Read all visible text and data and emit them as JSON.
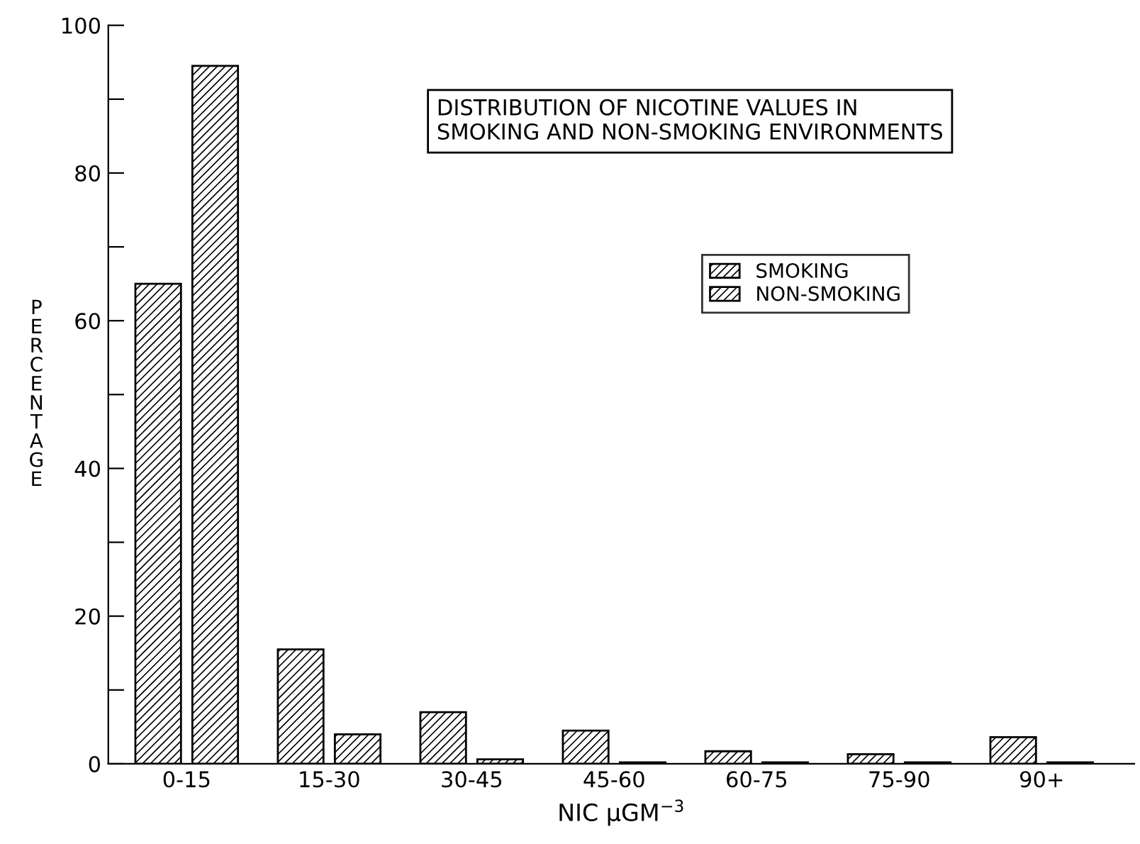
{
  "chart_data": {
    "type": "bar",
    "title": "DISTRIBUTION OF NICOTINE VALUES IN\nSMOKING AND NON-SMOKING ENVIRONMENTS",
    "xlabel": "NIC μGM$^{−3}$",
    "ylabel": "P\nE\nR\nC\nE\nN\nT\nA\nG\nE",
    "categories": [
      "0-15",
      "15-30",
      "30-45",
      "45-60",
      "60-75",
      "75-90",
      "90+"
    ],
    "series": [
      {
        "name": "SMOKING",
        "color": "#000000",
        "values": [
          65,
          15.5,
          7,
          4.5,
          1.7,
          1.3,
          3.6
        ]
      },
      {
        "name": "NON-SMOKING",
        "color": "#000000",
        "values": [
          94.5,
          4,
          0.6,
          0.2,
          0.2,
          0.2,
          0.2
        ]
      }
    ],
    "ylim": [
      0,
      100
    ],
    "yticks": [
      0,
      {
        "value": 10,
        "label": null
      },
      20,
      {
        "value": 30,
        "label": null
      },
      40,
      {
        "value": 50,
        "label": null
      },
      60,
      {
        "value": 70,
        "label": null
      },
      80,
      {
        "value": 90,
        "label": null
      },
      100
    ],
    "grid": false,
    "legend": "right"
  }
}
